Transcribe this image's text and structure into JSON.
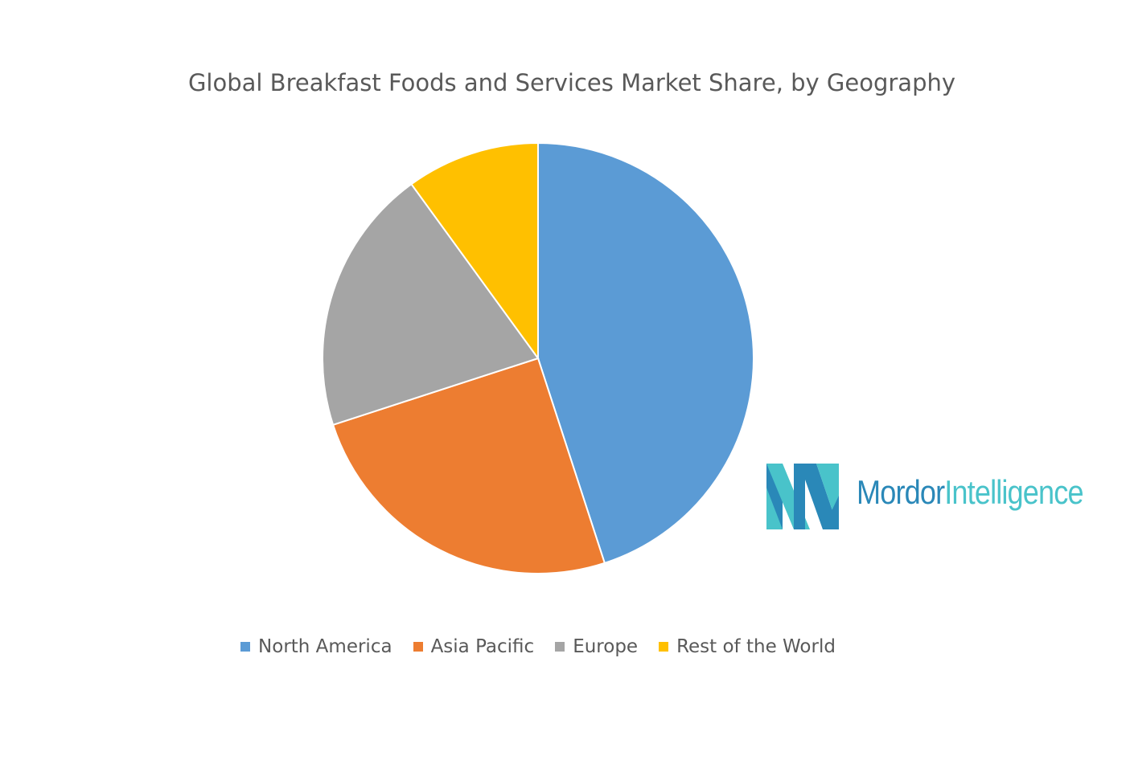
{
  "chart_data": {
    "type": "pie",
    "title": "Global Breakfast Foods and Services Market Share, by Geography",
    "categories": [
      "North America",
      "Asia Pacific",
      "Europe",
      "Rest of the World"
    ],
    "values": [
      45,
      25,
      20,
      10
    ],
    "colors": [
      "#5b9bd5",
      "#ed7d31",
      "#a5a5a5",
      "#ffc000"
    ],
    "legend_position": "bottom"
  },
  "logo": {
    "text_primary": "Mordor",
    "text_secondary": "Intelligence",
    "colors": [
      "#2a88b8",
      "#49c3ca"
    ]
  }
}
